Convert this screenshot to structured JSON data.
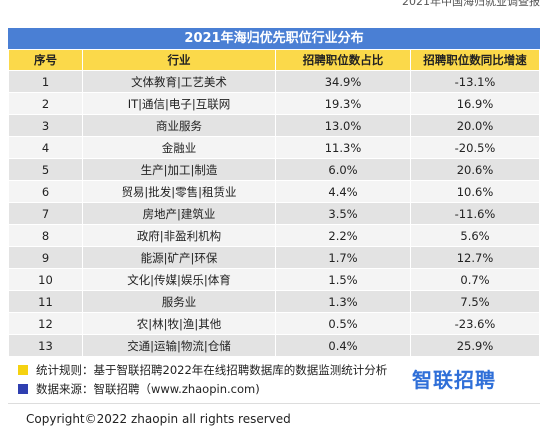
{
  "header": {
    "title": "2021年中国海归就业调查报"
  },
  "table": {
    "title": "2021年海归优先职位行业分布",
    "columns": [
      "序号",
      "行业",
      "招聘职位数占比",
      "招聘职位数同比增速"
    ],
    "rows": [
      [
        "1",
        "文体教育|工艺美术",
        "34.9%",
        "-13.1%"
      ],
      [
        "2",
        "IT|通信|电子|互联网",
        "19.3%",
        "16.9%"
      ],
      [
        "3",
        "商业服务",
        "13.0%",
        "20.0%"
      ],
      [
        "4",
        "金融业",
        "11.3%",
        "-20.5%"
      ],
      [
        "5",
        "生产|加工|制造",
        "6.0%",
        "20.6%"
      ],
      [
        "6",
        "贸易|批发|零售|租赁业",
        "4.4%",
        "10.6%"
      ],
      [
        "7",
        "房地产|建筑业",
        "3.5%",
        "-11.6%"
      ],
      [
        "8",
        "政府|非盈利机构",
        "2.2%",
        "5.6%"
      ],
      [
        "9",
        "能源|矿产|环保",
        "1.7%",
        "12.7%"
      ],
      [
        "10",
        "文化|传媒|娱乐|体育",
        "1.5%",
        "0.7%"
      ],
      [
        "11",
        "服务业",
        "1.3%",
        "7.5%"
      ],
      [
        "12",
        "农|林|牧|渔|其他",
        "0.5%",
        "-23.6%"
      ],
      [
        "13",
        "交通|运输|物流|仓储",
        "0.4%",
        "25.9%"
      ]
    ]
  },
  "footer": {
    "rule": "统计规则：基于智联招聘2022年在线招聘数据库的数据监测统计分析",
    "source": "数据来源：智联招聘（www.zhaopin.com)",
    "logo": "智联招聘",
    "copyright": "Copyright©2022 zhaopin all rights reserved"
  }
}
